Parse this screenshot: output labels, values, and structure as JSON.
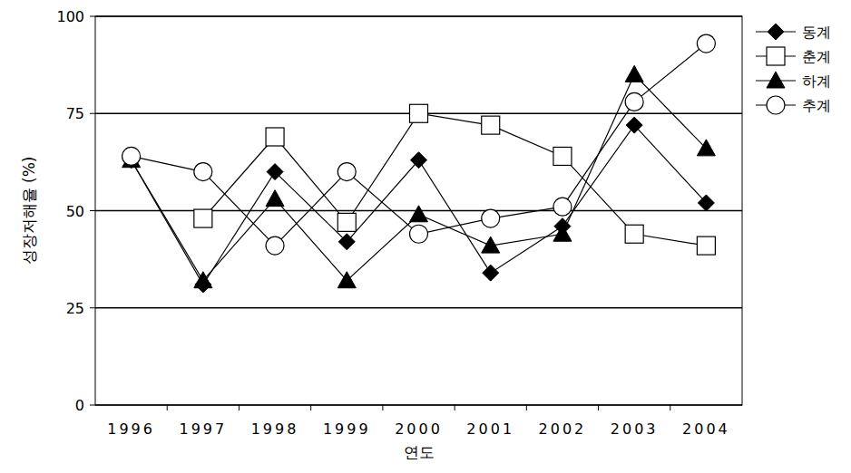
{
  "chart_data": {
    "type": "line",
    "x_label": "연도",
    "y_label": "성장저해율 (%)",
    "categories": [
      "1996",
      "1997",
      "1998",
      "1999",
      "2000",
      "2001",
      "2002",
      "2003",
      "2004"
    ],
    "series": [
      {
        "name": "동계",
        "color": "#000000",
        "marker": "diamond",
        "values": [
          63,
          31,
          60,
          42,
          63,
          34,
          46,
          72,
          52
        ]
      },
      {
        "name": "춘계",
        "color": "#000000",
        "marker": "square",
        "values": [
          null,
          48,
          69,
          47,
          75,
          72,
          64,
          44,
          41
        ]
      },
      {
        "name": "하계",
        "color": "#000000",
        "marker": "triangle",
        "values": [
          63,
          32,
          53,
          32,
          49,
          41,
          44,
          85,
          66
        ]
      },
      {
        "name": "추계",
        "color": "#000000",
        "marker": "circle",
        "values": [
          64,
          60,
          41,
          60,
          44,
          48,
          51,
          78,
          93
        ]
      }
    ],
    "ylim": [
      0,
      100
    ],
    "yticks": [
      0,
      25,
      50,
      75,
      100
    ],
    "grid": true,
    "legend": "right"
  }
}
